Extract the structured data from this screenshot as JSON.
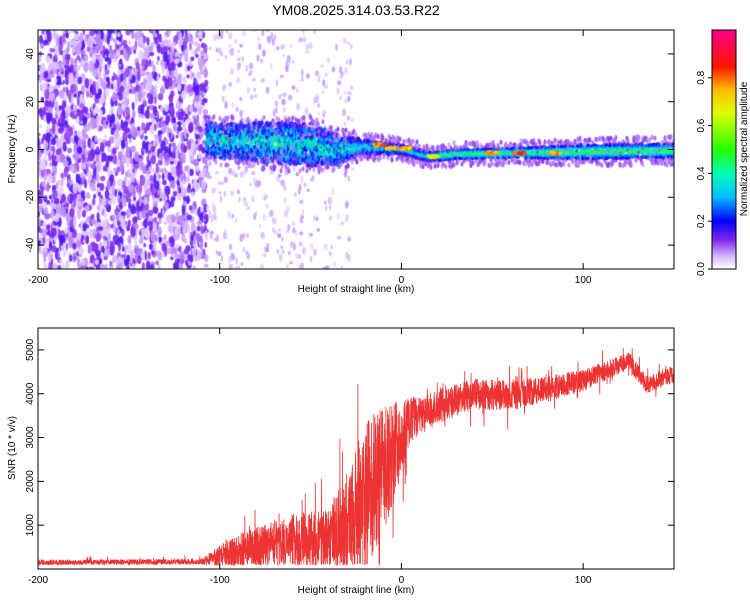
{
  "title": "YM08.2025.314.03.53.R22",
  "chart_data": [
    {
      "type": "heatmap",
      "xlabel": "Height of straight line (km)",
      "ylabel": "Frequency (Hz)",
      "xlim": [
        -200,
        150
      ],
      "ylim": [
        -50,
        50
      ],
      "xticks": [
        -200,
        -100,
        0,
        100
      ],
      "xtick_labels": [
        "-200",
        "-100",
        "0",
        "100"
      ],
      "yticks": [
        -40,
        -20,
        0,
        20,
        40
      ],
      "ytick_labels": [
        "-40",
        "-20",
        "0",
        "20",
        "40"
      ],
      "noise_region_x": [
        -200,
        -107
      ],
      "signal_band": [
        {
          "x": -107,
          "center": 4,
          "half_width": 7
        },
        {
          "x": -80,
          "center": 3,
          "half_width": 8
        },
        {
          "x": -50,
          "center": 2,
          "half_width": 9
        },
        {
          "x": -35,
          "center": 0,
          "half_width": 6
        },
        {
          "x": -20,
          "center": 1,
          "half_width": 3
        },
        {
          "x": 0,
          "center": 0,
          "half_width": 2
        },
        {
          "x": 15,
          "center": -3,
          "half_width": 2
        },
        {
          "x": 30,
          "center": -2,
          "half_width": 2
        },
        {
          "x": 60,
          "center": -1.5,
          "half_width": 2
        },
        {
          "x": 100,
          "center": -1,
          "half_width": 3
        },
        {
          "x": 150,
          "center": -0.5,
          "half_width": 3
        }
      ],
      "hot_spots": [
        {
          "x": -12,
          "y": 2,
          "amp": 0.85
        },
        {
          "x": -5,
          "y": 0.5,
          "amp": 0.8
        },
        {
          "x": 3,
          "y": 0.5,
          "amp": 0.8
        },
        {
          "x": 18,
          "y": -3,
          "amp": 0.75
        },
        {
          "x": 50,
          "y": -1.5,
          "amp": 0.85
        },
        {
          "x": 65,
          "y": -1.5,
          "amp": 0.9
        },
        {
          "x": 85,
          "y": -1.5,
          "amp": 0.85
        }
      ]
    },
    {
      "type": "colorbar",
      "label": "Normalized spectral amplitude",
      "range": [
        0,
        1
      ],
      "ticks": [
        0.0,
        0.2,
        0.4,
        0.6,
        0.8
      ],
      "tick_labels": [
        "0.0",
        "0.2",
        "0.4",
        "0.6",
        "0.8"
      ]
    },
    {
      "type": "line",
      "xlabel": "Height of straight line (km)",
      "ylabel": "SNR (10 * v/v)",
      "xlim": [
        -200,
        150
      ],
      "ylim": [
        0,
        5500
      ],
      "xticks": [
        -200,
        -100,
        0,
        100
      ],
      "xtick_labels": [
        "-200",
        "-100",
        "0",
        "100"
      ],
      "yticks": [
        1000,
        2000,
        3000,
        4000,
        5000
      ],
      "ytick_labels": [
        "1000",
        "2000",
        "3000",
        "4000",
        "5000"
      ],
      "color": "#ee3333",
      "envelope": [
        {
          "x": -200,
          "base": 150,
          "spread": 60
        },
        {
          "x": -150,
          "base": 160,
          "spread": 60
        },
        {
          "x": -110,
          "base": 170,
          "spread": 70
        },
        {
          "x": -100,
          "base": 300,
          "spread": 250
        },
        {
          "x": -80,
          "base": 500,
          "spread": 500
        },
        {
          "x": -60,
          "base": 650,
          "spread": 600
        },
        {
          "x": -40,
          "base": 700,
          "spread": 700
        },
        {
          "x": -25,
          "base": 1300,
          "spread": 1300
        },
        {
          "x": -15,
          "base": 2000,
          "spread": 1800
        },
        {
          "x": -5,
          "base": 2600,
          "spread": 1200
        },
        {
          "x": 5,
          "base": 3400,
          "spread": 500
        },
        {
          "x": 20,
          "base": 3700,
          "spread": 400
        },
        {
          "x": 40,
          "base": 4000,
          "spread": 350
        },
        {
          "x": 60,
          "base": 3950,
          "spread": 350
        },
        {
          "x": 80,
          "base": 4100,
          "spread": 300
        },
        {
          "x": 100,
          "base": 4300,
          "spread": 250
        },
        {
          "x": 125,
          "base": 4750,
          "spread": 200
        },
        {
          "x": 135,
          "base": 4200,
          "spread": 200
        },
        {
          "x": 150,
          "base": 4450,
          "spread": 200
        }
      ]
    }
  ]
}
